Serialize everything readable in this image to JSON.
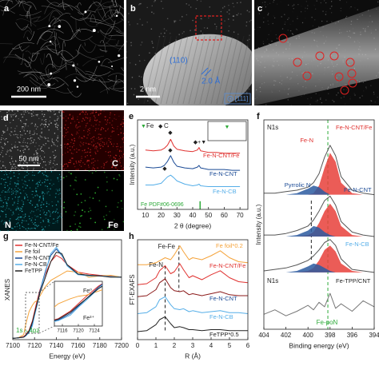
{
  "images": [
    {
      "panel": "a",
      "scale_bar": "200 nm"
    },
    {
      "panel": "b",
      "plane": "(110)",
      "spacing": "2.0 Å",
      "scale_bar": "2 nm",
      "zone_axis": "[111]"
    },
    {
      "panel": "c"
    },
    {
      "panel": "d",
      "scale_bar": "50 nm",
      "maps": [
        "C",
        "N",
        "Fe"
      ]
    }
  ],
  "chart_data": [
    {
      "panel": "e",
      "type": "line",
      "x_label": "2 θ (degree)",
      "y_label": "Intensity (a.u.)",
      "xlim": [
        5,
        75
      ],
      "ylim": [
        0,
        11
      ],
      "xticks": [
        10,
        20,
        30,
        40,
        50,
        60,
        70
      ],
      "x": [
        10,
        15,
        20,
        22,
        24,
        26,
        28,
        30,
        35,
        40,
        43,
        44,
        45,
        50,
        55,
        60,
        65,
        70
      ],
      "series": [
        {
          "name": "Fe-N-CNT/Fe",
          "color": "#e0312f",
          "label_color": "#e0312f",
          "values": [
            7.3,
            7.2,
            7.3,
            7.5,
            7.9,
            8.6,
            7.8,
            7.4,
            7.2,
            7.1,
            7.3,
            7.6,
            7.2,
            7.0,
            7.0,
            6.9,
            6.9,
            6.9
          ]
        },
        {
          "name": "Fe-N-CNT",
          "color": "#1a4a95",
          "label_color": "#1a4a95",
          "values": [
            5.2,
            5.1,
            5.2,
            5.4,
            5.9,
            6.6,
            5.8,
            5.3,
            5.1,
            5.0,
            5.2,
            5.4,
            5.1,
            4.9,
            4.9,
            4.9,
            4.8,
            4.8
          ]
        },
        {
          "name": "Fe-N-CB",
          "color": "#55aee8",
          "label_color": "#55aee8",
          "values": [
            3.0,
            3.0,
            3.2,
            3.6,
            4.0,
            4.2,
            3.9,
            3.5,
            3.1,
            2.9,
            3.0,
            3.1,
            2.9,
            2.8,
            2.8,
            2.8,
            2.8,
            2.8
          ]
        }
      ],
      "marker_legend": [
        {
          "symbol": "▼",
          "name": "Fe",
          "color": "#2eaa3a"
        },
        {
          "symbol": "◆",
          "name": "C",
          "color": "#222222"
        }
      ],
      "annotations": [
        {
          "text": "◆"
        },
        {
          "text": "◆"
        },
        {
          "text": "◆"
        },
        {
          "text": "◆+▼"
        },
        {
          "text": "▼",
          "color": "#2eaa3a"
        }
      ],
      "reference": {
        "name": "Fe PDF#06-0696",
        "color": "#2eaa3a",
        "positions": [
          44.7
        ],
        "heights": [
          1
        ]
      }
    },
    {
      "panel": "f",
      "type": "line",
      "x_label": "Binding energy (eV)",
      "y_label": "Intensity (a.u.)",
      "xlim": [
        404,
        394
      ],
      "ylim": [
        0,
        14
      ],
      "xticks": [
        404,
        402,
        400,
        398,
        396,
        394
      ],
      "x": [
        404,
        403,
        402,
        401,
        400,
        399.5,
        399,
        398.5,
        398,
        397.5,
        397,
        396,
        395,
        394
      ],
      "series": [
        {
          "name": "Fe-N",
          "color": "#e8403a",
          "label_color": "#e0312f",
          "fill": true,
          "values": [
            9,
            9,
            9,
            9,
            9,
            9.1,
            9.6,
            10.8,
            11.8,
            11.2,
            9.8,
            9.1,
            9,
            9
          ]
        },
        {
          "color": "#2c5aa0",
          "fill": true,
          "values": [
            9,
            9,
            9,
            9.1,
            9.4,
            9.6,
            9.5,
            9.2,
            9.0,
            9,
            9,
            9,
            9,
            9
          ]
        },
        {
          "name": "Fe-N-CNT/Fe",
          "color": "#555555",
          "label_color": "#e0312f",
          "values": [
            9.1,
            9.1,
            9.2,
            9.3,
            9.5,
            9.8,
            10.4,
            11.5,
            12.3,
            11.6,
            10.2,
            9.3,
            9.1,
            9.0
          ]
        },
        {
          "color": "#e8403a",
          "fill": true,
          "values": [
            6.2,
            6.2,
            6.2,
            6.2,
            6.3,
            6.5,
            7.1,
            7.9,
            8.4,
            7.9,
            6.9,
            6.3,
            6.2,
            6.2
          ]
        },
        {
          "name": "Pyrrolic N",
          "color": "#2c5aa0",
          "label_color": "#1a4a95",
          "fill": true,
          "values": [
            6.2,
            6.2,
            6.2,
            6.3,
            6.6,
            6.9,
            6.8,
            6.5,
            6.3,
            6.2,
            6.2,
            6.2,
            6.2,
            6.2
          ]
        },
        {
          "name": "Fe-N-CNT",
          "color": "#555555",
          "label_color": "#1a4a95",
          "values": [
            6.3,
            6.3,
            6.4,
            6.6,
            6.9,
            7.3,
            7.9,
            8.6,
            8.9,
            8.3,
            7.2,
            6.5,
            6.3,
            6.2
          ]
        },
        {
          "color": "#e8403a",
          "fill": true,
          "values": [
            3.8,
            3.8,
            3.8,
            3.8,
            3.9,
            4.1,
            4.6,
            5.3,
            5.6,
            5.2,
            4.4,
            3.9,
            3.8,
            3.8
          ]
        },
        {
          "color": "#2c5aa0",
          "fill": true,
          "values": [
            3.8,
            3.8,
            3.8,
            3.9,
            4.2,
            4.4,
            4.3,
            4.1,
            3.9,
            3.8,
            3.8,
            3.8,
            3.8,
            3.8
          ]
        },
        {
          "name": "Fe-N-CB",
          "color": "#555555",
          "label_color": "#55aee8",
          "values": [
            3.9,
            4.0,
            4.1,
            4.3,
            4.6,
            4.9,
            5.3,
            5.8,
            6.0,
            5.6,
            4.7,
            4.0,
            3.9,
            3.8
          ]
        },
        {
          "name": "Fe-TPP/CNT",
          "color": "#777777",
          "label_color": "#222222",
          "values": [
            1.0,
            1.3,
            0.9,
            1.2,
            1.6,
            1.3,
            1.8,
            1.5,
            2.4,
            1.4,
            1.7,
            1.2,
            1.9,
            1.5
          ]
        }
      ],
      "ref_lines": [
        {
          "x": 398.2,
          "label": "Fe-poN",
          "color": "#2eaa3a"
        },
        {
          "x": 399.7,
          "y_range": [
            4.6,
            8.6
          ],
          "color": "#222222"
        }
      ],
      "annotations": [
        {
          "text": "N1s"
        },
        {
          "text": "N1s"
        }
      ]
    },
    {
      "panel": "g",
      "type": "line",
      "x_label": "Energy (eV)",
      "y_label": "XANES",
      "xlim": [
        7100,
        7200
      ],
      "ylim": [
        0,
        1.6
      ],
      "xticks": [
        7100,
        7120,
        7140,
        7160,
        7180,
        7200
      ],
      "legend": "upper left",
      "x": [
        7100,
        7105,
        7110,
        7112,
        7115,
        7118,
        7120,
        7122,
        7125,
        7130,
        7135,
        7140,
        7145,
        7150,
        7160,
        7170,
        7180,
        7190,
        7200
      ],
      "series": [
        {
          "name": "Fe-N-CNT/Fe",
          "color": "#e0312f",
          "values": [
            0.02,
            0.03,
            0.05,
            0.08,
            0.15,
            0.3,
            0.45,
            0.6,
            0.8,
            1.05,
            1.25,
            1.35,
            1.3,
            1.2,
            1.08,
            1.05,
            1.03,
            1.02,
            1.0
          ]
        },
        {
          "name": "Fe foil",
          "color": "#f5a33a",
          "values": [
            0.02,
            0.03,
            0.08,
            0.25,
            0.45,
            0.55,
            0.6,
            0.62,
            0.7,
            0.85,
            0.95,
            1.0,
            1.05,
            1.1,
            1.08,
            1.0,
            1.02,
            1.03,
            1.0
          ]
        },
        {
          "name": "Fe-N-CNT",
          "color": "#1a4a95",
          "values": [
            0.02,
            0.03,
            0.04,
            0.06,
            0.12,
            0.25,
            0.4,
            0.55,
            0.78,
            1.1,
            1.35,
            1.45,
            1.35,
            1.2,
            1.05,
            1.03,
            1.02,
            1.01,
            1.0
          ]
        },
        {
          "name": "Fe-N-CB",
          "color": "#55aee8",
          "values": [
            0.02,
            0.03,
            0.04,
            0.06,
            0.11,
            0.22,
            0.38,
            0.52,
            0.75,
            1.08,
            1.38,
            1.48,
            1.36,
            1.18,
            1.04,
            1.02,
            1.02,
            1.01,
            1.0
          ]
        },
        {
          "name": "FeTPP",
          "color": "#222222",
          "values": [
            0.02,
            0.03,
            0.04,
            0.07,
            0.14,
            0.28,
            0.42,
            0.55,
            0.75,
            1.0,
            1.25,
            1.4,
            1.38,
            1.2,
            1.05,
            1.03,
            1.02,
            1.0,
            1.0
          ]
        }
      ],
      "annotations": [
        {
          "text": "1s→4pz",
          "color": "#2eaa3a"
        }
      ],
      "inset": {
        "xlim": [
          7114,
          7126
        ],
        "ylim": [
          0,
          0.9
        ],
        "xticks": [
          7116,
          7120,
          7124
        ],
        "labels": [
          "Fe⁰",
          "Fe³⁺"
        ]
      }
    },
    {
      "panel": "h",
      "type": "line",
      "x_label": "R (Å)",
      "y_label": "FT-EXAFS",
      "xlim": [
        0,
        6
      ],
      "ylim": [
        0,
        10
      ],
      "xticks": [
        0,
        1,
        2,
        3,
        4,
        5,
        6
      ],
      "x": [
        0,
        0.5,
        1.0,
        1.2,
        1.5,
        1.8,
        2.0,
        2.3,
        2.5,
        2.8,
        3.0,
        3.5,
        4.0,
        4.5,
        5.0,
        5.5,
        6.0
      ],
      "series": [
        {
          "name": "Fe foil*0.2",
          "color": "#f5a33a",
          "label_color": "#f5a33a",
          "values": [
            7.5,
            7.5,
            7.7,
            7.9,
            8.2,
            8.0,
            8.5,
            9.4,
            8.8,
            8.0,
            8.2,
            8.0,
            8.4,
            8.9,
            8.2,
            7.8,
            7.7
          ]
        },
        {
          "name": "Fe-N-CNT/Fe",
          "color": "#e0312f",
          "label_color": "#e0312f",
          "values": [
            5.5,
            5.6,
            6.2,
            6.9,
            7.4,
            6.6,
            6.8,
            7.6,
            7.0,
            6.2,
            6.4,
            6.0,
            6.5,
            6.9,
            6.2,
            5.8,
            5.7
          ]
        },
        {
          "name": "Fe-N-CNT",
          "color": "#8b1a1a",
          "label_color": "#1a4a95",
          "values": [
            4.3,
            4.4,
            5.0,
            5.7,
            6.1,
            5.2,
            4.9,
            4.8,
            4.9,
            4.5,
            4.6,
            4.4,
            4.6,
            4.8,
            4.5,
            4.4,
            4.4
          ]
        },
        {
          "name": "Fe-N-CB",
          "color": "#55aee8",
          "label_color": "#55aee8",
          "values": [
            2.6,
            2.7,
            3.3,
            4.0,
            4.3,
            3.5,
            3.1,
            3.0,
            3.1,
            2.8,
            2.9,
            2.7,
            2.8,
            2.9,
            2.7,
            2.7,
            2.6
          ]
        },
        {
          "name": "FeTPP*0.5",
          "color": "#222222",
          "label_color": "#222222",
          "values": [
            0.8,
            0.9,
            1.5,
            2.0,
            2.3,
            1.6,
            1.2,
            1.3,
            1.2,
            1.0,
            1.0,
            0.9,
            1.0,
            1.0,
            0.9,
            0.9,
            0.9
          ]
        }
      ],
      "ref_lines": [
        {
          "x": 1.5,
          "y_range": [
            0.8,
            7.4
          ],
          "label": "Fe-N",
          "color": "#222222"
        },
        {
          "x": 2.25,
          "y_range": [
            4.8,
            9.4
          ],
          "label": "Fe-Fe",
          "color": "#222222"
        }
      ]
    }
  ]
}
